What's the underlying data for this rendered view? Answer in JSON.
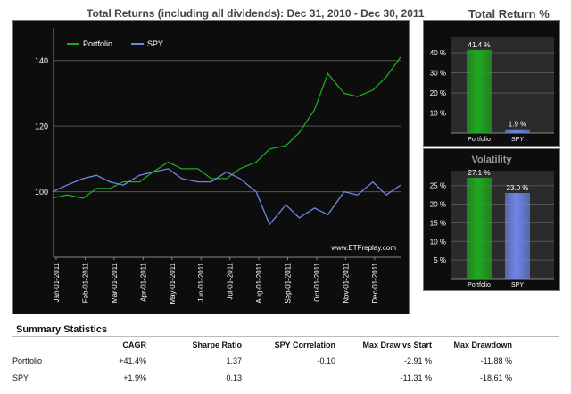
{
  "main_chart": {
    "title": "Total Returns (including all dividends): Dec 31, 2010 - Dec 30, 2011",
    "watermark": "www.ETFreplay.com",
    "legend": [
      {
        "name": "Portfolio",
        "color": "#1faa1f"
      },
      {
        "name": "SPY",
        "color": "#6f86e8"
      }
    ]
  },
  "total_return_title": "Total Return %",
  "volatility_title": "Volatility",
  "stats": {
    "title": "Summary Statistics",
    "headers": [
      "",
      "CAGR",
      "Sharpe Ratio",
      "SPY Correlation",
      "Max Draw vs Start",
      "Max Drawdown"
    ],
    "rows": [
      [
        "Portfolio",
        "+41.4%",
        "1.37",
        "-0.10",
        "-2.91 %",
        "-11.88 %"
      ],
      [
        "SPY",
        "+1.9%",
        "0.13",
        "",
        "-11.31 %",
        "-18.61 %"
      ]
    ]
  },
  "chart_data": [
    {
      "type": "line",
      "title": "Total Returns (including all dividends): Dec 31, 2010 - Dec 30, 2011",
      "x_tick_labels": [
        "Jan-01-2011",
        "Feb-01-2011",
        "Mar-01-2011",
        "Apr-01-2011",
        "May-01-2011",
        "Jun-01-2011",
        "Jul-01-2011",
        "Aug-01-2011",
        "Sep-01-2011",
        "Oct-01-2011",
        "Nov-01-2011",
        "Dec-01-2011"
      ],
      "y_ticks": [
        100,
        120,
        140
      ],
      "ylim": [
        80,
        150
      ],
      "grid": true,
      "legend_position": "top-left",
      "x": [
        "2010-12-31",
        "2011-01-15",
        "2011-02-01",
        "2011-02-15",
        "2011-03-01",
        "2011-03-15",
        "2011-04-01",
        "2011-04-15",
        "2011-05-01",
        "2011-05-15",
        "2011-06-01",
        "2011-06-15",
        "2011-07-01",
        "2011-07-15",
        "2011-08-01",
        "2011-08-15",
        "2011-09-01",
        "2011-09-15",
        "2011-10-01",
        "2011-10-15",
        "2011-11-01",
        "2011-11-15",
        "2011-12-01",
        "2011-12-15",
        "2011-12-30"
      ],
      "series": [
        {
          "name": "Portfolio",
          "color": "#1faa1f",
          "values": [
            98,
            99,
            98,
            101,
            101,
            103,
            103,
            106,
            109,
            107,
            107,
            104,
            104,
            107,
            109,
            113,
            114,
            118,
            125,
            136,
            130,
            129,
            131,
            135,
            141
          ]
        },
        {
          "name": "SPY",
          "color": "#6f86e8",
          "values": [
            100,
            102,
            104,
            105,
            103,
            102,
            105,
            106,
            107,
            104,
            103,
            103,
            106,
            104,
            100,
            90,
            96,
            92,
            95,
            93,
            100,
            99,
            103,
            99,
            102
          ]
        }
      ]
    },
    {
      "type": "bar",
      "title": "Total Return %",
      "categories": [
        "Portfolio",
        "SPY"
      ],
      "values": [
        41.4,
        1.9
      ],
      "data_labels": [
        "41.4 %",
        "1.9 %"
      ],
      "y_ticks": [
        10,
        20,
        30,
        40
      ],
      "y_tick_labels": [
        "10 %",
        "20 %",
        "30 %",
        "40 %"
      ],
      "ylim": [
        0,
        48
      ],
      "colors": [
        "#1faa1f",
        "#6f86e8"
      ]
    },
    {
      "type": "bar",
      "title": "Volatility",
      "categories": [
        "Portfolio",
        "SPY"
      ],
      "values": [
        27.1,
        23.0
      ],
      "data_labels": [
        "27.1 %",
        "23.0 %"
      ],
      "y_ticks": [
        5,
        10,
        15,
        20,
        25
      ],
      "y_tick_labels": [
        "5 %",
        "10 %",
        "15 %",
        "20 %",
        "25 %"
      ],
      "ylim": [
        0,
        29
      ],
      "colors": [
        "#1faa1f",
        "#6f86e8"
      ]
    }
  ]
}
